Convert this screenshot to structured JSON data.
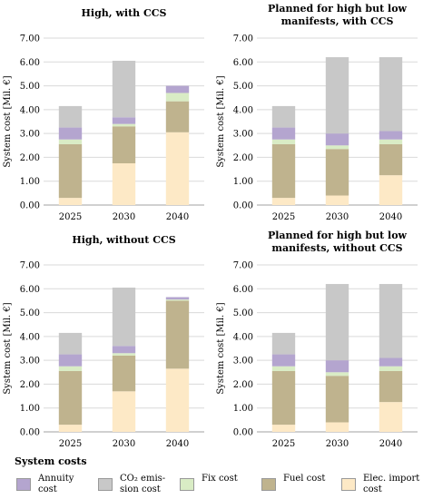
{
  "chart_data": [
    {
      "type": "bar",
      "stacked": true,
      "title": "High, with CCS",
      "ylabel": "System cost [Mil. €]",
      "categories": [
        "2025",
        "2030",
        "2040"
      ],
      "yticks": [
        "0.00",
        "1.00",
        "2.00",
        "3.00",
        "4.00",
        "5.00",
        "6.00",
        "7.00"
      ],
      "ylim": [
        0,
        7
      ],
      "series": [
        {
          "name": "Elec. import cost",
          "color": "#fde9c6",
          "values": [
            0.3,
            1.75,
            3.05
          ]
        },
        {
          "name": "Fuel cost",
          "color": "#bfb38e",
          "values": [
            2.25,
            1.55,
            1.3
          ]
        },
        {
          "name": "Fix cost",
          "color": "#d9ecc5",
          "values": [
            0.2,
            0.1,
            0.35
          ]
        },
        {
          "name": "Annuity cost",
          "color": "#b4a5cf",
          "values": [
            0.5,
            0.28,
            0.3
          ]
        },
        {
          "name": "CO₂ emission cost",
          "color": "#c8c8c8",
          "values": [
            0.9,
            2.37,
            0.0
          ]
        }
      ]
    },
    {
      "type": "bar",
      "stacked": true,
      "title": "Planned for high but low manifests, with CCS",
      "title_lines": [
        "Planned for high but low",
        "manifests, with CCS"
      ],
      "ylabel": "System cost [Mil. €]",
      "categories": [
        "2025",
        "2030",
        "2040"
      ],
      "yticks": [
        "0.00",
        "1.00",
        "2.00",
        "3.00",
        "4.00",
        "5.00",
        "6.00",
        "7.00"
      ],
      "ylim": [
        0,
        7
      ],
      "series": [
        {
          "name": "Elec. import cost",
          "color": "#fde9c6",
          "values": [
            0.3,
            0.4,
            1.25
          ]
        },
        {
          "name": "Fuel cost",
          "color": "#bfb38e",
          "values": [
            2.25,
            1.95,
            1.3
          ]
        },
        {
          "name": "Fix cost",
          "color": "#d9ecc5",
          "values": [
            0.2,
            0.15,
            0.2
          ]
        },
        {
          "name": "Annuity cost",
          "color": "#b4a5cf",
          "values": [
            0.5,
            0.5,
            0.35
          ]
        },
        {
          "name": "CO₂ emission cost",
          "color": "#c8c8c8",
          "values": [
            0.9,
            3.2,
            3.1
          ]
        }
      ]
    },
    {
      "type": "bar",
      "stacked": true,
      "title": "High, without CCS",
      "ylabel": "System cost [Mil. €]",
      "categories": [
        "2025",
        "2030",
        "2040"
      ],
      "yticks": [
        "0.00",
        "1.00",
        "2.00",
        "3.00",
        "4.00",
        "5.00",
        "6.00",
        "7.00"
      ],
      "ylim": [
        0,
        7
      ],
      "series": [
        {
          "name": "Elec. import cost",
          "color": "#fde9c6",
          "values": [
            0.3,
            1.7,
            2.65
          ]
        },
        {
          "name": "Fuel cost",
          "color": "#bfb38e",
          "values": [
            2.25,
            1.5,
            2.85
          ]
        },
        {
          "name": "Fix cost",
          "color": "#d9ecc5",
          "values": [
            0.2,
            0.1,
            0.05
          ]
        },
        {
          "name": "Annuity cost",
          "color": "#b4a5cf",
          "values": [
            0.5,
            0.3,
            0.1
          ]
        },
        {
          "name": "CO₂ emission cost",
          "color": "#c8c8c8",
          "values": [
            0.9,
            2.45,
            0.0
          ]
        }
      ]
    },
    {
      "type": "bar",
      "stacked": true,
      "title": "Planned for high but low manifests, without CCS",
      "title_lines": [
        "Planned for high but low",
        "manifests, without CCS"
      ],
      "ylabel": "System cost [Mil. €]",
      "categories": [
        "2025",
        "2030",
        "2040"
      ],
      "yticks": [
        "0.00",
        "1.00",
        "2.00",
        "3.00",
        "4.00",
        "5.00",
        "6.00",
        "7.00"
      ],
      "ylim": [
        0,
        7
      ],
      "series": [
        {
          "name": "Elec. import cost",
          "color": "#fde9c6",
          "values": [
            0.3,
            0.4,
            1.25
          ]
        },
        {
          "name": "Fuel cost",
          "color": "#bfb38e",
          "values": [
            2.25,
            1.95,
            1.3
          ]
        },
        {
          "name": "Fix cost",
          "color": "#d9ecc5",
          "values": [
            0.2,
            0.15,
            0.2
          ]
        },
        {
          "name": "Annuity cost",
          "color": "#b4a5cf",
          "values": [
            0.5,
            0.5,
            0.35
          ]
        },
        {
          "name": "CO₂ emission cost",
          "color": "#c8c8c8",
          "values": [
            0.9,
            3.2,
            3.1
          ]
        }
      ]
    }
  ],
  "legend": {
    "title": "System costs",
    "items": [
      {
        "label": "Annuity cost",
        "lines": [
          "Annuity",
          "cost"
        ],
        "color": "#b4a5cf"
      },
      {
        "label": "CO₂ emission cost",
        "lines": [
          "CO₂ emis-",
          "sion cost"
        ],
        "color": "#c8c8c8"
      },
      {
        "label": "Fix cost",
        "lines": [
          "Fix cost"
        ],
        "color": "#d9ecc5"
      },
      {
        "label": "Fuel cost",
        "lines": [
          "Fuel cost"
        ],
        "color": "#bfb38e"
      },
      {
        "label": "Elec. import cost",
        "lines": [
          "Elec. import",
          "cost"
        ],
        "color": "#fde9c6"
      }
    ]
  }
}
